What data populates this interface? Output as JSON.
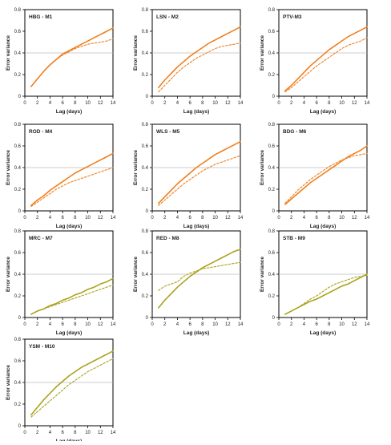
{
  "chart_data": [
    {
      "type": "line",
      "title": "HBG - M1",
      "xlabel": "Lag (days)",
      "ylabel": "Error variance",
      "color": "#F07F1E",
      "xlim": [
        0,
        14
      ],
      "ylim": [
        0,
        0.8
      ],
      "xticks": [
        "0",
        "2",
        "4",
        "6",
        "8",
        "10",
        "12",
        "14"
      ],
      "yticks": [
        "0",
        "0.2",
        "0.4",
        "0.6",
        "0.8"
      ],
      "reference_line": 0.4,
      "series": [
        {
          "style": "solid",
          "x": [
            1,
            2,
            3,
            4,
            5,
            6,
            7,
            8,
            9,
            10,
            11,
            12,
            13,
            14
          ],
          "y": [
            0.09,
            0.16,
            0.23,
            0.29,
            0.34,
            0.39,
            0.42,
            0.45,
            0.48,
            0.51,
            0.54,
            0.57,
            0.6,
            0.63
          ]
        },
        {
          "style": "dashed",
          "x": [
            1,
            2,
            3,
            4,
            5,
            6,
            7,
            8,
            9,
            10,
            11,
            12,
            13,
            14
          ],
          "y": [
            0.09,
            0.16,
            0.23,
            0.29,
            0.34,
            0.38,
            0.41,
            0.44,
            0.46,
            0.48,
            0.49,
            0.5,
            0.51,
            0.53
          ]
        }
      ]
    },
    {
      "type": "line",
      "title": "LSN - M2",
      "xlabel": "Lag (days)",
      "ylabel": "Error variance",
      "color": "#F07F1E",
      "xlim": [
        0,
        14
      ],
      "ylim": [
        0,
        0.8
      ],
      "xticks": [
        "0",
        "2",
        "4",
        "6",
        "8",
        "10",
        "12",
        "14"
      ],
      "yticks": [
        "0",
        "0.2",
        "0.4",
        "0.6",
        "0.8"
      ],
      "reference_line": 0.4,
      "series": [
        {
          "style": "solid",
          "x": [
            1,
            2,
            3,
            4,
            5,
            6,
            7,
            8,
            9,
            10,
            11,
            12,
            13,
            14
          ],
          "y": [
            0.08,
            0.15,
            0.21,
            0.27,
            0.32,
            0.37,
            0.41,
            0.45,
            0.49,
            0.52,
            0.55,
            0.58,
            0.61,
            0.64
          ]
        },
        {
          "style": "dashed",
          "x": [
            1,
            2,
            3,
            4,
            5,
            6,
            7,
            8,
            9,
            10,
            11,
            12,
            13,
            14
          ],
          "y": [
            0.04,
            0.1,
            0.16,
            0.22,
            0.27,
            0.31,
            0.35,
            0.38,
            0.41,
            0.44,
            0.46,
            0.47,
            0.48,
            0.49
          ]
        }
      ]
    },
    {
      "type": "line",
      "title": "PTV-M3",
      "xlabel": "Lag (days)",
      "ylabel": "Error variance",
      "color": "#F07F1E",
      "xlim": [
        0,
        14
      ],
      "ylim": [
        0,
        0.8
      ],
      "xticks": [
        "0",
        "2",
        "4",
        "6",
        "8",
        "10",
        "12",
        "14"
      ],
      "yticks": [
        "0",
        "0.2",
        "0.4",
        "0.6",
        "0.8"
      ],
      "reference_line": 0.4,
      "series": [
        {
          "style": "solid",
          "x": [
            1,
            2,
            3,
            4,
            5,
            6,
            7,
            8,
            9,
            10,
            11,
            12,
            13,
            14
          ],
          "y": [
            0.05,
            0.1,
            0.16,
            0.22,
            0.28,
            0.33,
            0.38,
            0.43,
            0.47,
            0.51,
            0.55,
            0.58,
            0.61,
            0.64
          ]
        },
        {
          "style": "dashed",
          "x": [
            1,
            2,
            3,
            4,
            5,
            6,
            7,
            8,
            9,
            10,
            11,
            12,
            13,
            14
          ],
          "y": [
            0.04,
            0.08,
            0.13,
            0.18,
            0.23,
            0.28,
            0.32,
            0.36,
            0.4,
            0.44,
            0.47,
            0.49,
            0.51,
            0.54
          ]
        }
      ]
    },
    {
      "type": "line",
      "title": "ROD - M4",
      "xlabel": "Lag (days)",
      "ylabel": "Error variance",
      "color": "#F07F1E",
      "xlim": [
        0,
        14
      ],
      "ylim": [
        0,
        0.8
      ],
      "xticks": [
        "0",
        "2",
        "4",
        "6",
        "8",
        "10",
        "12",
        "14"
      ],
      "yticks": [
        "0",
        "0.2",
        "0.4",
        "0.6",
        "0.8"
      ],
      "reference_line": 0.4,
      "series": [
        {
          "style": "solid",
          "x": [
            1,
            2,
            3,
            4,
            5,
            6,
            7,
            8,
            9,
            10,
            11,
            12,
            13,
            14
          ],
          "y": [
            0.05,
            0.1,
            0.14,
            0.19,
            0.23,
            0.27,
            0.31,
            0.35,
            0.38,
            0.41,
            0.44,
            0.47,
            0.5,
            0.53
          ]
        },
        {
          "style": "dashed",
          "x": [
            1,
            2,
            3,
            4,
            5,
            6,
            7,
            8,
            9,
            10,
            11,
            12,
            13,
            14
          ],
          "y": [
            0.04,
            0.08,
            0.12,
            0.16,
            0.2,
            0.23,
            0.26,
            0.28,
            0.3,
            0.32,
            0.34,
            0.36,
            0.38,
            0.4
          ]
        }
      ]
    },
    {
      "type": "line",
      "title": "WLS - M5",
      "xlabel": "Lag (days)",
      "ylabel": "Error variance",
      "color": "#F07F1E",
      "xlim": [
        0,
        14
      ],
      "ylim": [
        0,
        0.8
      ],
      "xticks": [
        "0",
        "2",
        "4",
        "6",
        "8",
        "10",
        "12",
        "14"
      ],
      "yticks": [
        "0",
        "0.2",
        "0.4",
        "0.6",
        "0.8"
      ],
      "reference_line": 0.4,
      "series": [
        {
          "style": "solid",
          "x": [
            1,
            2,
            3,
            4,
            5,
            6,
            7,
            8,
            9,
            10,
            11,
            12,
            13,
            14
          ],
          "y": [
            0.07,
            0.13,
            0.19,
            0.25,
            0.3,
            0.35,
            0.4,
            0.44,
            0.48,
            0.52,
            0.55,
            0.58,
            0.61,
            0.64
          ]
        },
        {
          "style": "dashed",
          "x": [
            1,
            2,
            3,
            4,
            5,
            6,
            7,
            8,
            9,
            10,
            11,
            12,
            13,
            14
          ],
          "y": [
            0.05,
            0.1,
            0.15,
            0.2,
            0.25,
            0.29,
            0.33,
            0.37,
            0.4,
            0.43,
            0.45,
            0.47,
            0.49,
            0.51
          ]
        }
      ]
    },
    {
      "type": "line",
      "title": "BDG - M6",
      "xlabel": "Lag (days)",
      "ylabel": "Error variance",
      "color": "#F07F1E",
      "xlim": [
        0,
        14
      ],
      "ylim": [
        0,
        0.8
      ],
      "xticks": [
        "0",
        "2",
        "4",
        "6",
        "8",
        "10",
        "12",
        "14"
      ],
      "yticks": [
        "0",
        "0.2",
        "0.4",
        "0.6",
        "0.8"
      ],
      "reference_line": 0.4,
      "series": [
        {
          "style": "solid",
          "x": [
            1,
            2,
            3,
            4,
            5,
            6,
            7,
            8,
            9,
            10,
            11,
            12,
            13,
            14
          ],
          "y": [
            0.06,
            0.11,
            0.16,
            0.21,
            0.26,
            0.3,
            0.34,
            0.38,
            0.42,
            0.46,
            0.5,
            0.53,
            0.56,
            0.6
          ]
        },
        {
          "style": "dashed",
          "x": [
            1,
            2,
            3,
            4,
            5,
            6,
            7,
            8,
            9,
            10,
            11,
            12,
            13,
            14
          ],
          "y": [
            0.07,
            0.13,
            0.19,
            0.24,
            0.29,
            0.33,
            0.37,
            0.41,
            0.44,
            0.47,
            0.49,
            0.51,
            0.52,
            0.53
          ]
        }
      ]
    },
    {
      "type": "line",
      "title": "MRC - M7",
      "xlabel": "Lag (days)",
      "ylabel": "Error variance",
      "color": "#A9A21C",
      "xlim": [
        0,
        14
      ],
      "ylim": [
        0,
        0.8
      ],
      "xticks": [
        "0",
        "2",
        "4",
        "6",
        "8",
        "10",
        "12",
        "14"
      ],
      "yticks": [
        "0",
        "0.2",
        "0.4",
        "0.6",
        "0.8"
      ],
      "reference_line": 0.4,
      "series": [
        {
          "style": "solid",
          "x": [
            1,
            2,
            3,
            4,
            5,
            6,
            7,
            8,
            9,
            10,
            11,
            12,
            13,
            14
          ],
          "y": [
            0.03,
            0.06,
            0.08,
            0.11,
            0.13,
            0.16,
            0.18,
            0.21,
            0.23,
            0.26,
            0.28,
            0.31,
            0.33,
            0.36
          ]
        },
        {
          "style": "dashed",
          "x": [
            1,
            2,
            3,
            4,
            5,
            6,
            7,
            8,
            9,
            10,
            11,
            12,
            13,
            14
          ],
          "y": [
            0.03,
            0.06,
            0.08,
            0.1,
            0.12,
            0.14,
            0.16,
            0.18,
            0.2,
            0.22,
            0.24,
            0.26,
            0.28,
            0.3
          ]
        }
      ]
    },
    {
      "type": "line",
      "title": "RED - M8",
      "xlabel": "Lag (days)",
      "ylabel": "Error variance",
      "color": "#A9A21C",
      "xlim": [
        0,
        14
      ],
      "ylim": [
        0,
        0.8
      ],
      "xticks": [
        "0",
        "2",
        "4",
        "6",
        "8",
        "10",
        "12",
        "14"
      ],
      "yticks": [
        "0",
        "0.2",
        "0.4",
        "0.6",
        "0.8"
      ],
      "reference_line": 0.4,
      "series": [
        {
          "style": "solid",
          "x": [
            1,
            2,
            3,
            4,
            5,
            6,
            7,
            8,
            9,
            10,
            11,
            12,
            13,
            14
          ],
          "y": [
            0.09,
            0.16,
            0.22,
            0.28,
            0.33,
            0.38,
            0.42,
            0.46,
            0.49,
            0.52,
            0.55,
            0.58,
            0.61,
            0.63
          ]
        },
        {
          "style": "dashed",
          "x": [
            1,
            2,
            3,
            4,
            5,
            6,
            7,
            8,
            9,
            10,
            11,
            12,
            13,
            14
          ],
          "y": [
            0.25,
            0.29,
            0.31,
            0.33,
            0.38,
            0.41,
            0.43,
            0.45,
            0.46,
            0.47,
            0.48,
            0.49,
            0.5,
            0.51
          ]
        }
      ]
    },
    {
      "type": "line",
      "title": "STB - M9",
      "xlabel": "Lag (days)",
      "ylabel": "Error variance",
      "color": "#A9A21C",
      "xlim": [
        0,
        14
      ],
      "ylim": [
        0,
        0.8
      ],
      "xticks": [
        "0",
        "2",
        "4",
        "6",
        "8",
        "10",
        "12",
        "14"
      ],
      "yticks": [
        "0",
        "0.2",
        "0.4",
        "0.6",
        "0.8"
      ],
      "reference_line": 0.4,
      "series": [
        {
          "style": "solid",
          "x": [
            1,
            2,
            3,
            4,
            5,
            6,
            7,
            8,
            9,
            10,
            11,
            12,
            13,
            14
          ],
          "y": [
            0.03,
            0.06,
            0.09,
            0.12,
            0.15,
            0.17,
            0.2,
            0.23,
            0.26,
            0.29,
            0.31,
            0.34,
            0.37,
            0.4
          ]
        },
        {
          "style": "dashed",
          "x": [
            1,
            2,
            3,
            4,
            5,
            6,
            7,
            8,
            9,
            10,
            11,
            12,
            13,
            14
          ],
          "y": [
            0.03,
            0.06,
            0.09,
            0.13,
            0.17,
            0.2,
            0.24,
            0.28,
            0.31,
            0.33,
            0.35,
            0.37,
            0.38,
            0.39
          ]
        }
      ]
    },
    {
      "type": "line",
      "title": "YSM - M10",
      "xlabel": "Lag (days)",
      "ylabel": "Error variance",
      "color": "#A9A21C",
      "xlim": [
        0,
        14
      ],
      "ylim": [
        0,
        0.8
      ],
      "xticks": [
        "0",
        "2",
        "4",
        "6",
        "8",
        "10",
        "12",
        "14"
      ],
      "yticks": [
        "0",
        "0.2",
        "0.4",
        "0.6",
        "0.8"
      ],
      "reference_line": 0.4,
      "series": [
        {
          "style": "solid",
          "x": [
            1,
            2,
            3,
            4,
            5,
            6,
            7,
            8,
            9,
            10,
            11,
            12,
            13,
            14
          ],
          "y": [
            0.1,
            0.17,
            0.24,
            0.3,
            0.36,
            0.41,
            0.46,
            0.5,
            0.54,
            0.57,
            0.6,
            0.63,
            0.66,
            0.69
          ]
        },
        {
          "style": "dashed",
          "x": [
            1,
            2,
            3,
            4,
            5,
            6,
            7,
            8,
            9,
            10,
            11,
            12,
            13,
            14
          ],
          "y": [
            0.08,
            0.13,
            0.18,
            0.23,
            0.28,
            0.33,
            0.38,
            0.42,
            0.46,
            0.5,
            0.53,
            0.56,
            0.59,
            0.62
          ]
        }
      ]
    }
  ]
}
